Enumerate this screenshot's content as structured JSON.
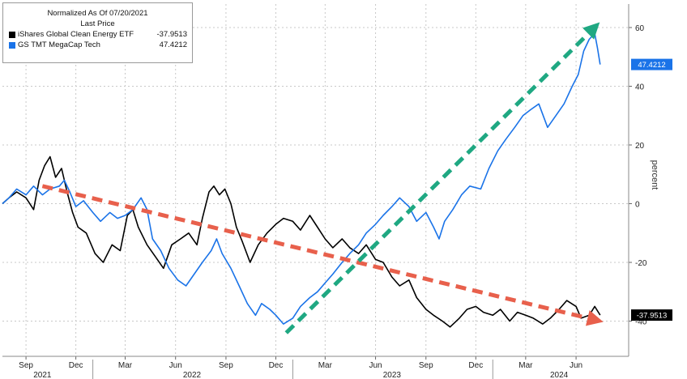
{
  "chart_data": {
    "type": "line",
    "title": "",
    "xlabel": "",
    "ylabel": "percent",
    "ylim": [
      -52,
      68
    ],
    "yticks": [
      60,
      40,
      20,
      0,
      -20,
      -40
    ],
    "grid": true,
    "legend_position": "top-left",
    "legend": {
      "header": "Normalized As Of 07/20/2021",
      "subheader": "Last Price"
    },
    "x_month_ticks": [
      {
        "label": "Sep",
        "date": "2021-09-01"
      },
      {
        "label": "Dec",
        "date": "2021-12-01"
      },
      {
        "label": "Mar",
        "date": "2022-03-01"
      },
      {
        "label": "Jun",
        "date": "2022-06-01"
      },
      {
        "label": "Sep",
        "date": "2022-09-01"
      },
      {
        "label": "Dec",
        "date": "2022-12-01"
      },
      {
        "label": "Mar",
        "date": "2023-03-01"
      },
      {
        "label": "Jun",
        "date": "2023-06-01"
      },
      {
        "label": "Sep",
        "date": "2023-09-01"
      },
      {
        "label": "Dec",
        "date": "2023-12-01"
      },
      {
        "label": "Mar",
        "date": "2024-03-01"
      },
      {
        "label": "Jun",
        "date": "2024-06-01"
      }
    ],
    "x_year_ticks": [
      {
        "label": "2021",
        "date": "2021-10-01"
      },
      {
        "label": "2022",
        "date": "2022-07-01"
      },
      {
        "label": "2023",
        "date": "2023-07-01"
      },
      {
        "label": "2024",
        "date": "2024-05-01"
      }
    ],
    "series": [
      {
        "name": "iShares Global Clean Energy ETF",
        "last_value": "-37.9513",
        "color": "#000000",
        "points": [
          [
            "2021-07-20",
            0
          ],
          [
            "2021-08-01",
            2
          ],
          [
            "2021-08-15",
            4
          ],
          [
            "2021-09-01",
            2
          ],
          [
            "2021-09-15",
            -2
          ],
          [
            "2021-09-25",
            8
          ],
          [
            "2021-10-05",
            13
          ],
          [
            "2021-10-15",
            16
          ],
          [
            "2021-10-25",
            9
          ],
          [
            "2021-11-05",
            12
          ],
          [
            "2021-11-15",
            4
          ],
          [
            "2021-11-25",
            -3
          ],
          [
            "2021-12-05",
            -8
          ],
          [
            "2021-12-20",
            -10
          ],
          [
            "2022-01-05",
            -17
          ],
          [
            "2022-01-20",
            -20
          ],
          [
            "2022-02-05",
            -14
          ],
          [
            "2022-02-20",
            -16
          ],
          [
            "2022-03-05",
            -4
          ],
          [
            "2022-03-15",
            -2
          ],
          [
            "2022-03-25",
            -8
          ],
          [
            "2022-04-10",
            -14
          ],
          [
            "2022-04-25",
            -18
          ],
          [
            "2022-05-10",
            -22
          ],
          [
            "2022-05-25",
            -14
          ],
          [
            "2022-06-10",
            -12
          ],
          [
            "2022-06-25",
            -10
          ],
          [
            "2022-07-10",
            -14
          ],
          [
            "2022-07-20",
            -5
          ],
          [
            "2022-08-01",
            4
          ],
          [
            "2022-08-10",
            6
          ],
          [
            "2022-08-20",
            3
          ],
          [
            "2022-08-30",
            5
          ],
          [
            "2022-09-10",
            0
          ],
          [
            "2022-09-20",
            -8
          ],
          [
            "2022-10-01",
            -13
          ],
          [
            "2022-10-15",
            -20
          ],
          [
            "2022-10-30",
            -14
          ],
          [
            "2022-11-15",
            -10
          ],
          [
            "2022-12-01",
            -7
          ],
          [
            "2022-12-15",
            -5
          ],
          [
            "2023-01-01",
            -6
          ],
          [
            "2023-01-15",
            -9
          ],
          [
            "2023-02-01",
            -4
          ],
          [
            "2023-02-15",
            -8
          ],
          [
            "2023-03-01",
            -12
          ],
          [
            "2023-03-15",
            -15
          ],
          [
            "2023-04-01",
            -12
          ],
          [
            "2023-04-15",
            -15
          ],
          [
            "2023-05-01",
            -17
          ],
          [
            "2023-05-15",
            -14
          ],
          [
            "2023-06-01",
            -19
          ],
          [
            "2023-06-15",
            -20
          ],
          [
            "2023-07-01",
            -25
          ],
          [
            "2023-07-15",
            -28
          ],
          [
            "2023-08-01",
            -26
          ],
          [
            "2023-08-15",
            -32
          ],
          [
            "2023-09-01",
            -36
          ],
          [
            "2023-09-15",
            -38
          ],
          [
            "2023-10-01",
            -40
          ],
          [
            "2023-10-15",
            -42
          ],
          [
            "2023-11-01",
            -39
          ],
          [
            "2023-11-15",
            -36
          ],
          [
            "2023-12-01",
            -35
          ],
          [
            "2023-12-15",
            -37
          ],
          [
            "2024-01-01",
            -38
          ],
          [
            "2024-01-15",
            -36
          ],
          [
            "2024-02-01",
            -40
          ],
          [
            "2024-02-15",
            -37
          ],
          [
            "2024-03-01",
            -38
          ],
          [
            "2024-03-15",
            -39
          ],
          [
            "2024-04-01",
            -41
          ],
          [
            "2024-04-15",
            -39
          ],
          [
            "2024-05-01",
            -36
          ],
          [
            "2024-05-15",
            -33
          ],
          [
            "2024-06-01",
            -35
          ],
          [
            "2024-06-10",
            -39
          ],
          [
            "2024-06-25",
            -38
          ],
          [
            "2024-07-05",
            -35
          ],
          [
            "2024-07-15",
            -37.95
          ]
        ]
      },
      {
        "name": "GS TMT MegaCap Tech",
        "last_value": "47.4212",
        "color": "#1a73e8",
        "points": [
          [
            "2021-07-20",
            0
          ],
          [
            "2021-08-01",
            2
          ],
          [
            "2021-08-15",
            5
          ],
          [
            "2021-09-01",
            3
          ],
          [
            "2021-09-15",
            6
          ],
          [
            "2021-10-01",
            3
          ],
          [
            "2021-10-15",
            5
          ],
          [
            "2021-11-01",
            6
          ],
          [
            "2021-11-10",
            8
          ],
          [
            "2021-11-20",
            4
          ],
          [
            "2021-12-01",
            -1
          ],
          [
            "2021-12-15",
            1
          ],
          [
            "2022-01-01",
            -3
          ],
          [
            "2022-01-15",
            -6
          ],
          [
            "2022-02-01",
            -3
          ],
          [
            "2022-02-15",
            -5
          ],
          [
            "2022-03-01",
            -4
          ],
          [
            "2022-03-15",
            -2
          ],
          [
            "2022-03-30",
            2
          ],
          [
            "2022-04-10",
            -2
          ],
          [
            "2022-04-20",
            -12
          ],
          [
            "2022-05-05",
            -16
          ],
          [
            "2022-05-20",
            -22
          ],
          [
            "2022-06-05",
            -26
          ],
          [
            "2022-06-20",
            -28
          ],
          [
            "2022-07-05",
            -24
          ],
          [
            "2022-07-20",
            -20
          ],
          [
            "2022-08-05",
            -16
          ],
          [
            "2022-08-15",
            -12
          ],
          [
            "2022-08-25",
            -17
          ],
          [
            "2022-09-10",
            -22
          ],
          [
            "2022-09-25",
            -28
          ],
          [
            "2022-10-10",
            -34
          ],
          [
            "2022-10-25",
            -38
          ],
          [
            "2022-11-05",
            -34
          ],
          [
            "2022-11-20",
            -36
          ],
          [
            "2022-12-01",
            -38
          ],
          [
            "2022-12-15",
            -41
          ],
          [
            "2023-01-01",
            -39
          ],
          [
            "2023-01-15",
            -35
          ],
          [
            "2023-02-01",
            -32
          ],
          [
            "2023-02-15",
            -30
          ],
          [
            "2023-03-01",
            -27
          ],
          [
            "2023-03-15",
            -24
          ],
          [
            "2023-04-01",
            -20
          ],
          [
            "2023-04-15",
            -17
          ],
          [
            "2023-05-01",
            -14
          ],
          [
            "2023-05-15",
            -10
          ],
          [
            "2023-06-01",
            -7
          ],
          [
            "2023-06-15",
            -4
          ],
          [
            "2023-07-01",
            -1
          ],
          [
            "2023-07-15",
            2
          ],
          [
            "2023-08-01",
            -1
          ],
          [
            "2023-08-15",
            -6
          ],
          [
            "2023-09-01",
            -3
          ],
          [
            "2023-09-15",
            -8
          ],
          [
            "2023-09-25",
            -12
          ],
          [
            "2023-10-05",
            -6
          ],
          [
            "2023-10-20",
            -2
          ],
          [
            "2023-11-05",
            3
          ],
          [
            "2023-11-20",
            6
          ],
          [
            "2023-12-10",
            5
          ],
          [
            "2023-12-25",
            12
          ],
          [
            "2024-01-10",
            18
          ],
          [
            "2024-01-25",
            22
          ],
          [
            "2024-02-10",
            26
          ],
          [
            "2024-02-25",
            30
          ],
          [
            "2024-03-10",
            32
          ],
          [
            "2024-03-25",
            34
          ],
          [
            "2024-04-10",
            26
          ],
          [
            "2024-04-25",
            30
          ],
          [
            "2024-05-10",
            34
          ],
          [
            "2024-05-25",
            40
          ],
          [
            "2024-06-05",
            44
          ],
          [
            "2024-06-15",
            52
          ],
          [
            "2024-06-25",
            56
          ],
          [
            "2024-07-05",
            58
          ],
          [
            "2024-07-10",
            53
          ],
          [
            "2024-07-15",
            47.42
          ]
        ]
      }
    ],
    "annotations": [
      {
        "type": "dashed-arrow",
        "color": "#e8604c",
        "from": [
          "2021-10-01",
          6
        ],
        "to": [
          "2024-07-15",
          -40
        ]
      },
      {
        "type": "dashed-arrow",
        "color": "#1fa882",
        "from": [
          "2022-12-20",
          -44
        ],
        "to": [
          "2024-07-10",
          61
        ]
      }
    ]
  }
}
